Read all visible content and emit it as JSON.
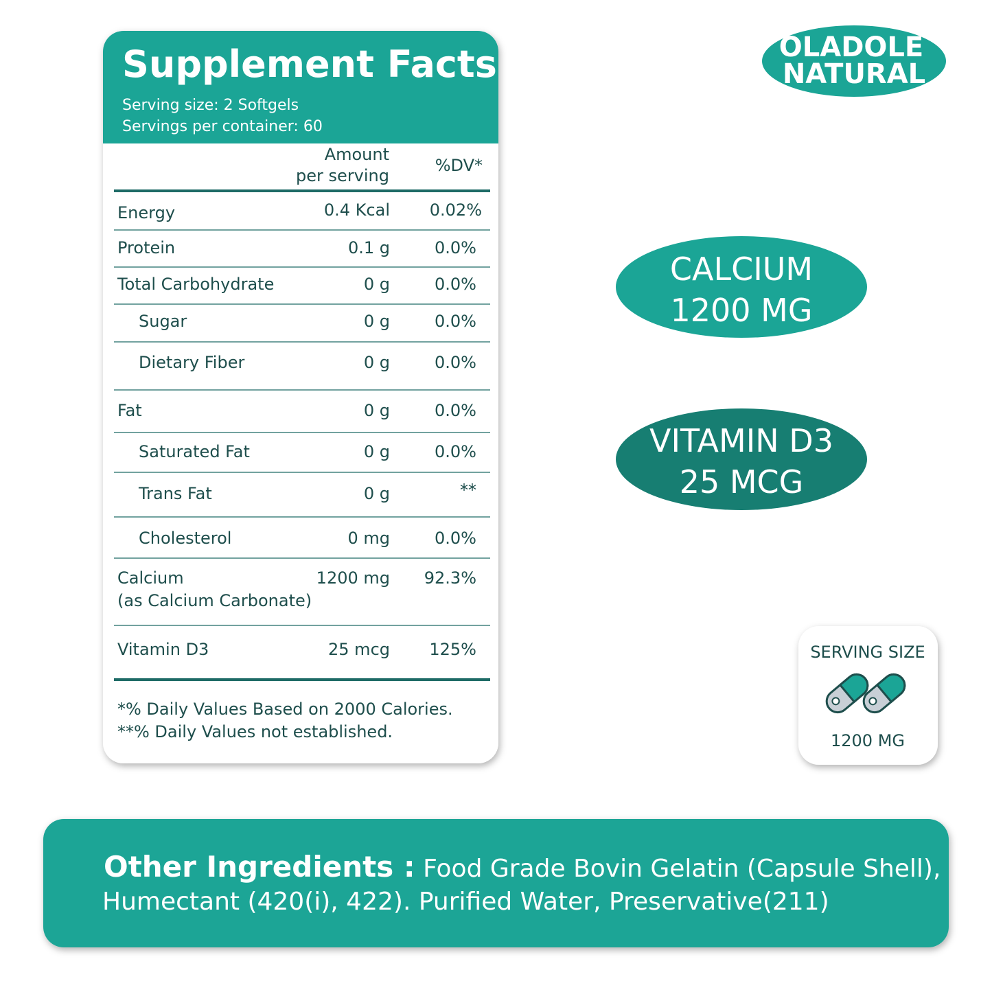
{
  "logo": [
    "OLADOLE",
    "NATURAL"
  ],
  "facts": {
    "title": "Supplement Facts",
    "serving_size": "Serving size: 2 Softgels",
    "servings": "Servings per container: 60",
    "headers": {
      "amount": [
        "Amount",
        "per serving"
      ],
      "dv": "%DV*"
    },
    "rows": [
      {
        "name": "Energy",
        "amount": "0.4 Kcal",
        "dv": "0.02%"
      },
      {
        "name": "Protein",
        "amount": "0.1 g",
        "dv": "0.0%"
      },
      {
        "name": "Total Carbohydrate",
        "amount": "0 g",
        "dv": "0.0%"
      },
      {
        "name": "Sugar",
        "amount": "0 g",
        "dv": "0.0%"
      },
      {
        "name": "Dietary Fiber",
        "amount": "0 g",
        "dv": "0.0%"
      },
      {
        "name": "Fat",
        "amount": "0 g",
        "dv": "0.0%"
      },
      {
        "name": "Saturated Fat",
        "amount": "0 g",
        "dv": "0.0%"
      },
      {
        "name": "Trans Fat",
        "amount": "0 g",
        "dv": "**"
      },
      {
        "name": "Cholesterol",
        "amount": "0 mg",
        "dv": "0.0%"
      },
      {
        "name": "Calcium",
        "note": "(as Calcium Carbonate)",
        "amount": "1200 mg",
        "dv": "92.3%"
      },
      {
        "name": "Vitamin D3",
        "amount": "25 mcg",
        "dv": "125%"
      }
    ],
    "footnotes": [
      "*% Daily  Values Based on 2000 Calories.",
      "**% Daily   Values not established."
    ]
  },
  "badges": [
    [
      "CALCIUM",
      "1200 MG"
    ],
    [
      "VITAMIN D3",
      "25 MCG"
    ]
  ],
  "serving_box": {
    "title": "SERVING SIZE",
    "amount": "1200 MG"
  },
  "ingredients": {
    "label": "Other Ingredients :",
    "lines": [
      "Food Grade Bovin Gelatin (Capsule Shell),",
      "Humectant (420(i), 422). Purified Water, Preservative(211)"
    ]
  }
}
